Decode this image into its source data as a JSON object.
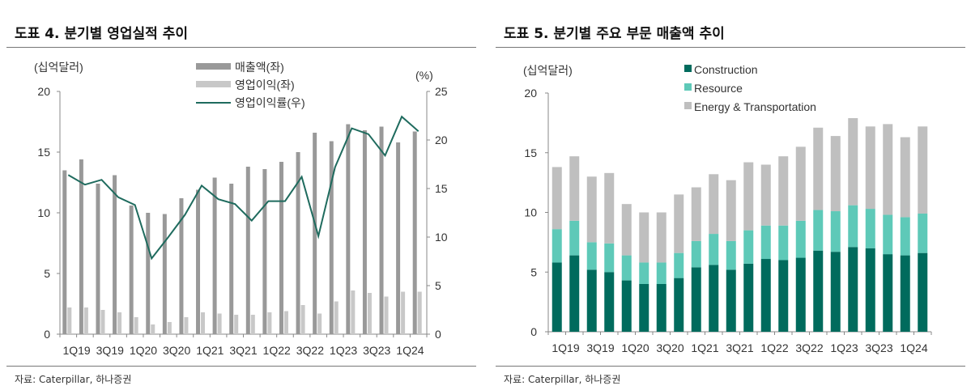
{
  "left": {
    "title": "도표 4. 분기별 영업실적 추이",
    "source": "자료: Caterpillar, 하나증권"
  },
  "right": {
    "title": "도표 5. 분기별 주요 부문 매출액 추이",
    "source": "자료: Caterpillar, 하나증권"
  },
  "chart_data": [
    {
      "type": "bar+line",
      "y_unit_left": "(십억달러)",
      "y_unit_right": "(%)",
      "categories": [
        "1Q19",
        "2Q19",
        "3Q19",
        "4Q19",
        "1Q20",
        "2Q20",
        "3Q20",
        "4Q20",
        "1Q21",
        "2Q21",
        "3Q21",
        "4Q21",
        "1Q22",
        "2Q22",
        "3Q22",
        "4Q22",
        "1Q23",
        "2Q23",
        "3Q23",
        "4Q23",
        "1Q24",
        "2Q24"
      ],
      "tick_labels": [
        "1Q19",
        "3Q19",
        "1Q20",
        "3Q20",
        "1Q21",
        "3Q21",
        "1Q22",
        "3Q22",
        "1Q23",
        "3Q23",
        "1Q24"
      ],
      "ylim_left": [
        0,
        20
      ],
      "yticks_left": [
        "0",
        "5",
        "10",
        "15",
        "20"
      ],
      "ylim_right": [
        0,
        25
      ],
      "yticks_right": [
        "0",
        "5",
        "10",
        "15",
        "20",
        "25"
      ],
      "legend_position": "top-center",
      "grid": false,
      "series": [
        {
          "name": "매출액(좌)",
          "type": "bar",
          "axis": "left",
          "color": "#999999",
          "values": [
            13.5,
            14.4,
            12.4,
            13.1,
            10.6,
            10.0,
            9.9,
            11.2,
            11.9,
            12.9,
            12.4,
            13.8,
            13.6,
            14.2,
            15.0,
            16.6,
            15.9,
            17.3,
            16.8,
            17.1,
            15.8,
            16.7
          ]
        },
        {
          "name": "영업이익(좌)",
          "type": "bar",
          "axis": "left",
          "color": "#c8c8c8",
          "values": [
            2.2,
            2.2,
            2.0,
            1.8,
            1.4,
            0.8,
            1.0,
            1.4,
            1.8,
            1.7,
            1.6,
            1.6,
            1.8,
            1.9,
            2.4,
            1.7,
            2.7,
            3.6,
            3.4,
            3.1,
            3.5,
            3.5
          ]
        },
        {
          "name": "영업이익률(우)",
          "type": "line",
          "axis": "right",
          "color": "#1f6b5e",
          "values": [
            16.4,
            15.4,
            15.9,
            14.1,
            13.3,
            7.8,
            10.0,
            12.3,
            15.3,
            13.9,
            13.4,
            11.7,
            13.7,
            13.7,
            16.2,
            10.1,
            17.2,
            21.2,
            20.6,
            18.4,
            22.4,
            20.9
          ]
        }
      ]
    },
    {
      "type": "stacked-bar",
      "y_unit_left": "(십억달러)",
      "categories": [
        "1Q19",
        "2Q19",
        "3Q19",
        "4Q19",
        "1Q20",
        "2Q20",
        "3Q20",
        "4Q20",
        "1Q21",
        "2Q21",
        "3Q21",
        "4Q21",
        "1Q22",
        "2Q22",
        "3Q22",
        "4Q22",
        "1Q23",
        "2Q23",
        "3Q23",
        "4Q23",
        "1Q24",
        "2Q24"
      ],
      "tick_labels": [
        "1Q19",
        "3Q19",
        "1Q20",
        "3Q20",
        "1Q21",
        "3Q21",
        "1Q22",
        "3Q22",
        "1Q23",
        "3Q23",
        "1Q24"
      ],
      "ylim": [
        0,
        20
      ],
      "yticks": [
        "0",
        "5",
        "10",
        "15",
        "20"
      ],
      "legend_position": "top-center",
      "grid": false,
      "series": [
        {
          "name": "Construction",
          "color": "#006b5d",
          "values": [
            5.8,
            6.4,
            5.2,
            5.0,
            4.3,
            4.0,
            4.0,
            4.5,
            5.4,
            5.6,
            5.2,
            5.7,
            6.1,
            6.0,
            6.2,
            6.8,
            6.7,
            7.1,
            7.0,
            6.5,
            6.4,
            6.6
          ]
        },
        {
          "name": "Resource",
          "color": "#5ec9b8",
          "values": [
            2.8,
            2.9,
            2.3,
            2.4,
            2.1,
            1.8,
            1.8,
            2.1,
            2.2,
            2.6,
            2.4,
            2.8,
            2.8,
            2.9,
            3.1,
            3.4,
            3.4,
            3.5,
            3.3,
            3.3,
            3.2,
            3.3
          ]
        },
        {
          "name": "Energy & Transportation",
          "color": "#bfbfbf",
          "values": [
            5.2,
            5.4,
            5.5,
            5.9,
            4.3,
            4.2,
            4.2,
            4.9,
            4.5,
            5.0,
            5.1,
            5.7,
            5.1,
            5.8,
            6.2,
            6.9,
            6.3,
            7.3,
            6.9,
            7.6,
            6.7,
            7.3
          ]
        }
      ]
    }
  ]
}
